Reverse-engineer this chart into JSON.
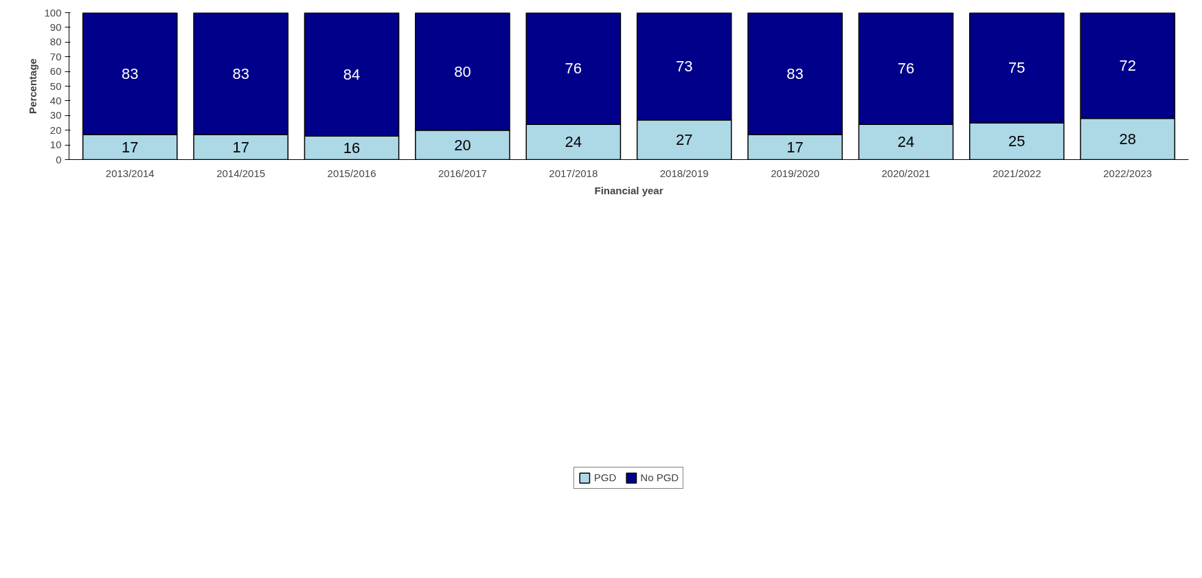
{
  "chart_data": {
    "type": "bar",
    "stacked": true,
    "xlabel": "Financial year",
    "ylabel": "Percentage",
    "categories": [
      "2013/2014",
      "2014/2015",
      "2015/2016",
      "2016/2017",
      "2017/2018",
      "2018/2019",
      "2019/2020",
      "2020/2021",
      "2021/2022",
      "2022/2023"
    ],
    "series": [
      {
        "name": "PGD",
        "color": "#add8e6",
        "values": [
          17,
          17,
          16,
          20,
          24,
          27,
          17,
          24,
          25,
          28
        ]
      },
      {
        "name": "No PGD",
        "color": "#00008b",
        "values": [
          83,
          83,
          84,
          80,
          76,
          73,
          83,
          76,
          75,
          72
        ]
      }
    ],
    "ylim": [
      0,
      100
    ],
    "yticks": [
      0,
      10,
      20,
      30,
      40,
      50,
      60,
      70,
      80,
      90,
      100
    ],
    "data_labels": true,
    "legend": "bottom",
    "grid": false
  }
}
